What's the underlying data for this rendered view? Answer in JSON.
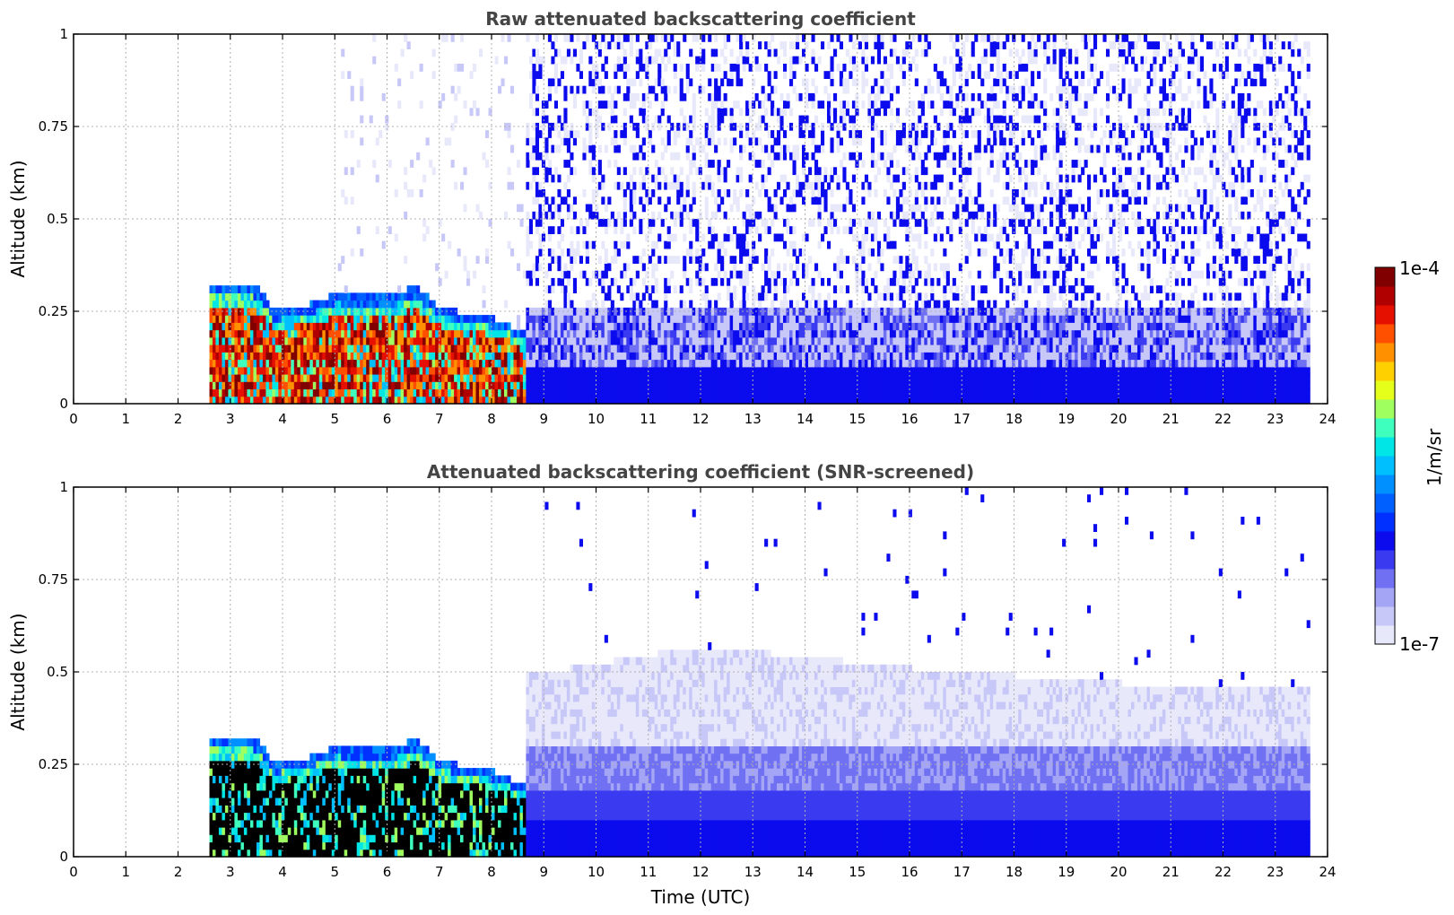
{
  "chart_data": [
    {
      "type": "heatmap",
      "title": "Raw attenuated backscattering coefficient",
      "xlabel": "",
      "ylabel": "Altitude (km)",
      "xlim": [
        0,
        24
      ],
      "ylim": [
        0,
        1
      ],
      "x_ticks": [
        "0",
        "1",
        "2",
        "3",
        "4",
        "5",
        "6",
        "7",
        "8",
        "9",
        "10",
        "11",
        "12",
        "13",
        "14",
        "15",
        "16",
        "17",
        "18",
        "19",
        "20",
        "21",
        "22",
        "23",
        "24"
      ],
      "y_ticks": [
        "0",
        "0.25",
        "0.5",
        "0.75",
        "1"
      ],
      "grid": true,
      "data_extent_hours": [
        2.6,
        23.6
      ],
      "aerosol_layer_top_km": [
        {
          "x": 2.6,
          "top": 0.32
        },
        {
          "x": 3.5,
          "top": 0.31
        },
        {
          "x": 3.8,
          "top": 0.24
        },
        {
          "x": 4.5,
          "top": 0.26
        },
        {
          "x": 5.0,
          "top": 0.29
        },
        {
          "x": 6.0,
          "top": 0.28
        },
        {
          "x": 6.5,
          "top": 0.31
        },
        {
          "x": 7.0,
          "top": 0.25
        },
        {
          "x": 8.0,
          "top": 0.22
        },
        {
          "x": 8.6,
          "top": 0.18
        }
      ]
    },
    {
      "type": "heatmap",
      "title": "Attenuated backscattering coefficient (SNR-screened)",
      "xlabel": "Time (UTC)",
      "ylabel": "Altitude (km)",
      "xlim": [
        0,
        24
      ],
      "ylim": [
        0,
        1
      ],
      "x_ticks": [
        "0",
        "1",
        "2",
        "3",
        "4",
        "5",
        "6",
        "7",
        "8",
        "9",
        "10",
        "11",
        "12",
        "13",
        "14",
        "15",
        "16",
        "17",
        "18",
        "19",
        "20",
        "21",
        "22",
        "23",
        "24"
      ],
      "y_ticks": [
        "0",
        "0.25",
        "0.5",
        "0.75",
        "1"
      ],
      "grid": true,
      "data_extent_hours": [
        2.6,
        23.6
      ],
      "screened_layer_top_km": [
        {
          "x": 8.6,
          "top": 0.48
        },
        {
          "x": 12.0,
          "top": 0.56
        },
        {
          "x": 16.0,
          "top": 0.5
        },
        {
          "x": 20.0,
          "top": 0.46
        },
        {
          "x": 23.6,
          "top": 0.46
        }
      ]
    }
  ],
  "colorbar": {
    "label": "1/m/sr",
    "min_label": "1e-7",
    "max_label": "1e-4",
    "scale": "log",
    "colors": [
      "#e8e8fb",
      "#c8c8f8",
      "#a5a5f6",
      "#7070f2",
      "#3a3af0",
      "#0b0bee",
      "#0030ff",
      "#0060ff",
      "#0090ff",
      "#00bfff",
      "#00e5e5",
      "#3fffbf",
      "#9fff5f",
      "#e5ff1a",
      "#ffd000",
      "#ff9000",
      "#ff5000",
      "#e51000",
      "#b00000",
      "#800000"
    ]
  }
}
